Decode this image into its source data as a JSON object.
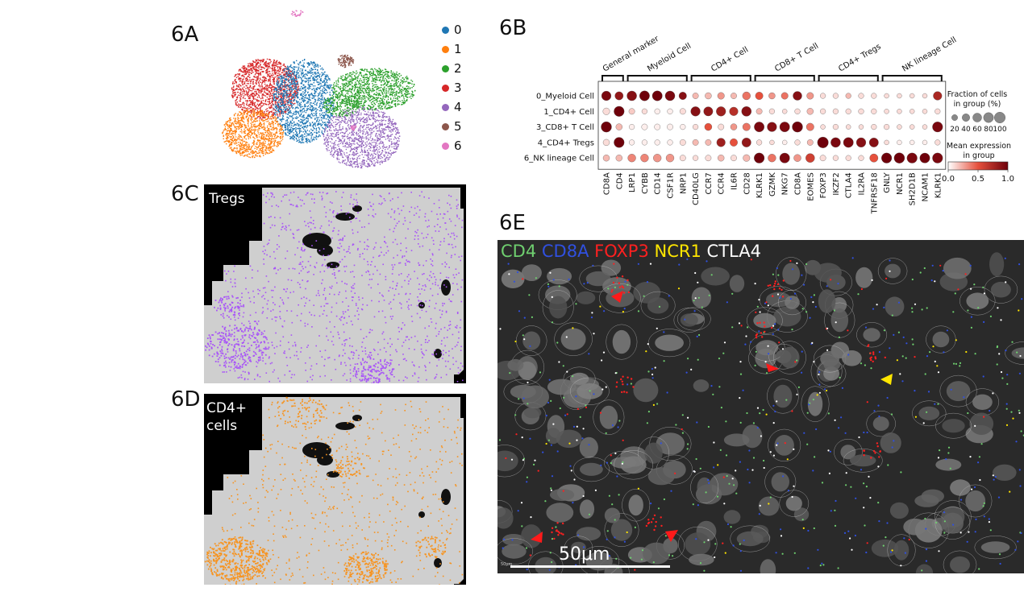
{
  "panels": {
    "a": "6A",
    "b": "6B",
    "c": "6C",
    "d": "6D",
    "e": "6E"
  },
  "umap_legend": [
    {
      "label": "0",
      "color": "#1f77b4"
    },
    {
      "label": "1",
      "color": "#ff7f0e"
    },
    {
      "label": "2",
      "color": "#2ca02c"
    },
    {
      "label": "3",
      "color": "#d62728"
    },
    {
      "label": "4",
      "color": "#9467bd"
    },
    {
      "label": "5",
      "color": "#8c564b"
    },
    {
      "label": "6",
      "color": "#e377c2"
    }
  ],
  "spatial": {
    "tregs_label": "Tregs",
    "tregs_color": "#a855f7",
    "cd4_label_line1": "CD4+",
    "cd4_label_line2": "cells",
    "cd4_color": "#f7931e"
  },
  "chart_data": {
    "type": "dotplot",
    "groups": [
      {
        "label": "General marker",
        "genes": [
          "CD8A",
          "CD4"
        ]
      },
      {
        "label": "Myeloid Cell",
        "genes": [
          "LRP1",
          "CYBB",
          "CD14",
          "CSF1R",
          "NRP1"
        ]
      },
      {
        "label": "CD4+ Cell",
        "genes": [
          "CD40LG",
          "CCR7",
          "CCR4",
          "IL6R",
          "CD28"
        ]
      },
      {
        "label": "CD8+ T Cell",
        "genes": [
          "KLRK1",
          "GZMK",
          "NKG7",
          "CD8A",
          "EOMES"
        ]
      },
      {
        "label": "CD4+ Tregs",
        "genes": [
          "FOXP3",
          "IKZF2",
          "CTLA4",
          "IL2RA",
          "TNFRSF18"
        ]
      },
      {
        "label": "NK lineage Cell",
        "genes": [
          "GNLY",
          "NCR1",
          "SH2D1B",
          "NCAM1",
          "KLRK1"
        ]
      }
    ],
    "rows": [
      "0_Myeloid Cell",
      "1_CD4+ Cell",
      "3_CD8+ T Cell",
      "4_CD4+ Tregs",
      "6_NK lineage Cell"
    ],
    "fraction": [
      [
        70,
        50,
        75,
        80,
        80,
        75,
        40,
        20,
        25,
        30,
        20,
        45,
        40,
        25,
        30,
        60,
        30,
        15,
        15,
        15,
        15,
        15,
        10,
        10,
        10,
        10,
        55
      ],
      [
        30,
        85,
        20,
        15,
        15,
        15,
        20,
        70,
        65,
        70,
        55,
        75,
        20,
        15,
        10,
        15,
        25,
        15,
        15,
        15,
        15,
        15,
        10,
        10,
        10,
        10,
        15
      ],
      [
        90,
        25,
        15,
        20,
        20,
        20,
        15,
        15,
        35,
        20,
        25,
        40,
        80,
        70,
        80,
        90,
        40,
        10,
        15,
        10,
        10,
        15,
        15,
        10,
        10,
        10,
        85
      ],
      [
        25,
        85,
        15,
        15,
        15,
        15,
        20,
        20,
        20,
        55,
        40,
        65,
        15,
        10,
        10,
        15,
        20,
        100,
        75,
        80,
        70,
        65,
        10,
        10,
        10,
        10,
        15
      ],
      [
        25,
        25,
        45,
        45,
        45,
        45,
        20,
        15,
        20,
        25,
        20,
        30,
        85,
        45,
        80,
        35,
        60,
        20,
        15,
        15,
        15,
        50,
        85,
        90,
        85,
        80,
        85
      ]
    ],
    "expression": [
      [
        0.95,
        0.85,
        0.9,
        1.0,
        1.0,
        0.95,
        0.9,
        0.2,
        0.2,
        0.3,
        0.2,
        0.4,
        0.5,
        0.3,
        0.4,
        0.9,
        0.3,
        0.1,
        0.1,
        0.2,
        0.1,
        0.1,
        0.1,
        0.1,
        0.1,
        0.1,
        0.75
      ],
      [
        0.1,
        1.0,
        0.15,
        0.1,
        0.05,
        0.05,
        0.1,
        0.9,
        0.85,
        0.8,
        0.7,
        0.9,
        0.2,
        0.1,
        0.1,
        0.1,
        0.2,
        0.1,
        0.1,
        0.1,
        0.1,
        0.1,
        0.1,
        0.1,
        0.1,
        0.1,
        0.1
      ],
      [
        1.0,
        0.2,
        0.05,
        0.05,
        0.05,
        0.05,
        0.05,
        0.1,
        0.5,
        0.1,
        0.3,
        0.4,
        0.95,
        0.9,
        0.95,
        1.0,
        0.4,
        0.1,
        0.1,
        0.1,
        0.1,
        0.1,
        0.1,
        0.1,
        0.1,
        0.1,
        0.95
      ],
      [
        0.1,
        1.0,
        0.05,
        0.05,
        0.05,
        0.05,
        0.1,
        0.2,
        0.2,
        0.8,
        0.5,
        0.85,
        0.1,
        0.1,
        0.05,
        0.1,
        0.2,
        1.0,
        0.95,
        0.95,
        0.9,
        0.9,
        0.1,
        0.05,
        0.05,
        0.05,
        0.1
      ],
      [
        0.2,
        0.2,
        0.35,
        0.35,
        0.3,
        0.3,
        0.1,
        0.1,
        0.1,
        0.2,
        0.1,
        0.2,
        1.0,
        0.4,
        0.95,
        0.3,
        0.6,
        0.1,
        0.1,
        0.1,
        0.1,
        0.5,
        1.0,
        1.0,
        0.95,
        1.0,
        0.95
      ]
    ],
    "size_legend_title_line1": "Fraction of cells",
    "size_legend_title_line2": "in group (%)",
    "size_legend_ticks": [
      "20",
      "40",
      "60",
      "80",
      "100"
    ],
    "color_legend_title_line1": "Mean expression",
    "color_legend_title_line2": "in group",
    "color_legend_ticks": [
      "0.0",
      "0.5",
      "1.0"
    ]
  },
  "microscopy": {
    "channels": [
      {
        "label": "CD4",
        "color": "#6fcf6f"
      },
      {
        "label": "CD8A",
        "color": "#3050e0"
      },
      {
        "label": "FOXP3",
        "color": "#ff2020"
      },
      {
        "label": "NCR1",
        "color": "#ffe600"
      },
      {
        "label": "CTLA4",
        "color": "#ffffff"
      }
    ],
    "scale_label": "50μm",
    "corner_scale_label": "50μm"
  }
}
